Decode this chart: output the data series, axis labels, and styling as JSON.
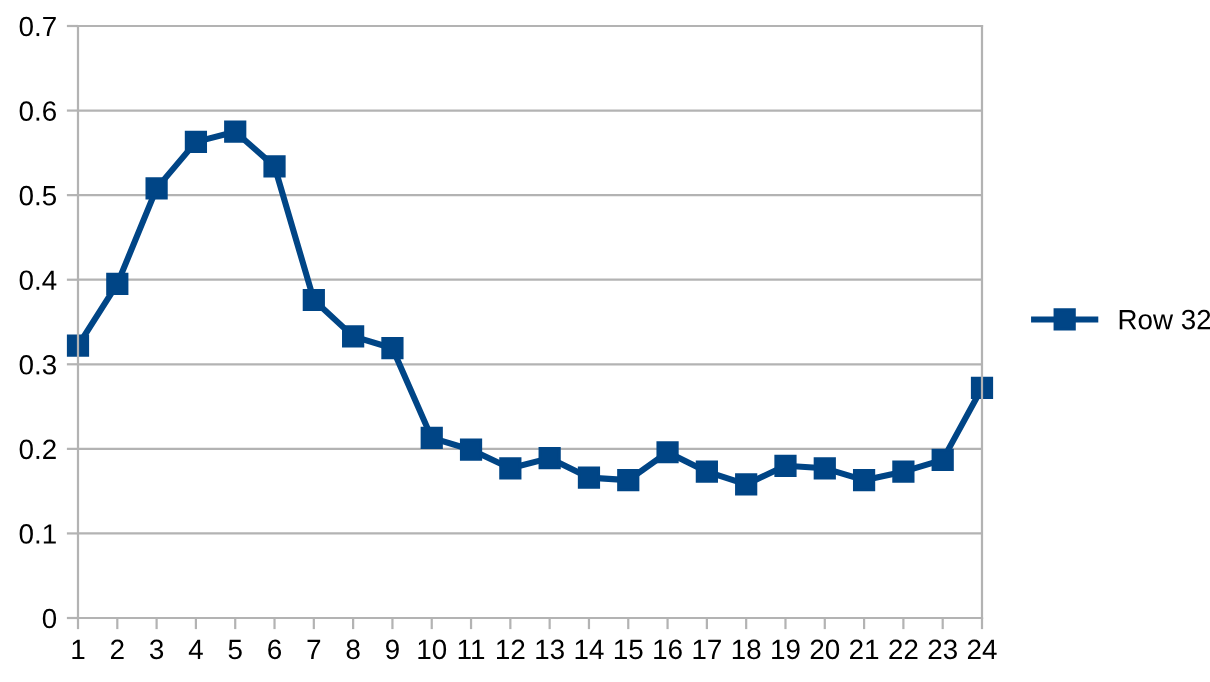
{
  "chart_data": {
    "type": "line",
    "categories": [
      "1",
      "2",
      "3",
      "4",
      "5",
      "6",
      "7",
      "8",
      "9",
      "10",
      "11",
      "12",
      "13",
      "14",
      "15",
      "16",
      "17",
      "18",
      "19",
      "20",
      "21",
      "22",
      "23",
      "24"
    ],
    "series": [
      {
        "name": "Row 32",
        "color": "#004586",
        "values": [
          0.322,
          0.395,
          0.508,
          0.563,
          0.575,
          0.534,
          0.376,
          0.333,
          0.319,
          0.213,
          0.199,
          0.177,
          0.189,
          0.166,
          0.163,
          0.196,
          0.173,
          0.158,
          0.18,
          0.177,
          0.163,
          0.173,
          0.187,
          0.272
        ]
      }
    ],
    "ylim": [
      0,
      0.7
    ],
    "yticks": [
      0,
      0.1,
      0.2,
      0.3,
      0.4,
      0.5,
      0.6,
      0.7
    ],
    "grid": "y",
    "legend": "right",
    "marker": "square",
    "line_style": "solid"
  }
}
